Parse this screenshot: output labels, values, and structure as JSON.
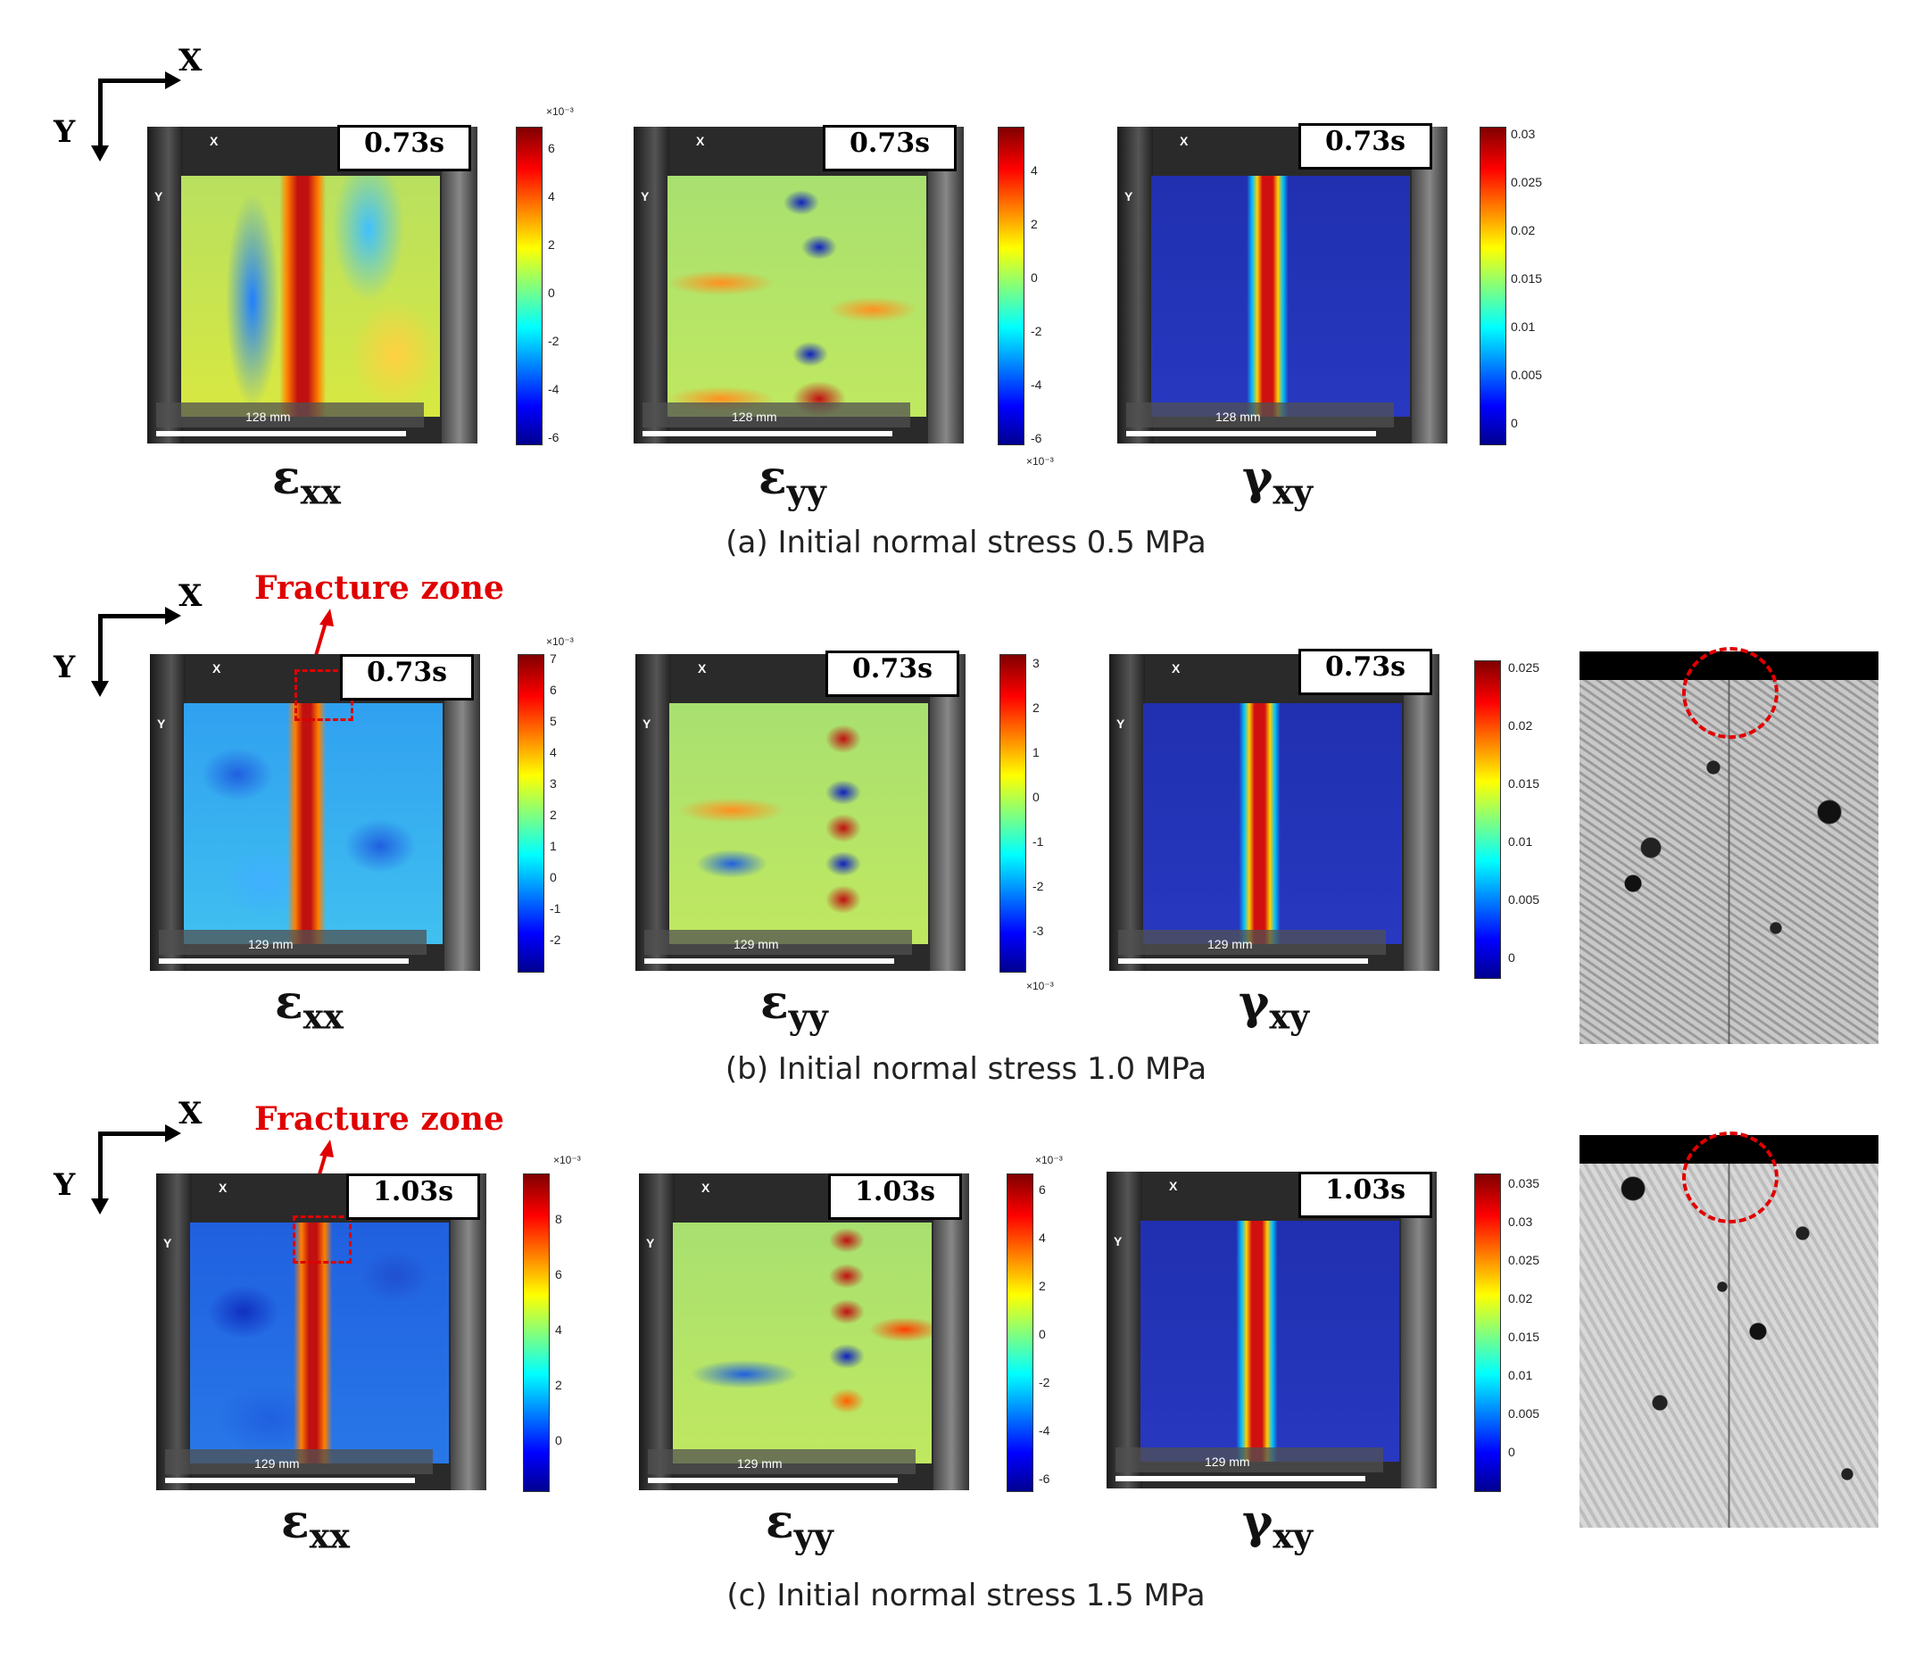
{
  "axes_labels": {
    "x": "X",
    "y": "Y"
  },
  "fracture_label": "Fracture zone",
  "panel_marks": {
    "x": "X",
    "y": "Y"
  },
  "strain_symbols": {
    "exx": {
      "base": "ε",
      "sub": "xx"
    },
    "eyy": {
      "base": "ε",
      "sub": "yy"
    },
    "gxy": {
      "base": "γ",
      "sub": "xy"
    }
  },
  "colorbar_exponent": "×10⁻³",
  "rows": [
    {
      "caption": "(a) Initial normal stress 0.5 MPa",
      "time": "0.73s",
      "scale": "128 mm",
      "exx_ticks": [
        "6",
        "4",
        "2",
        "0",
        "-2",
        "-4",
        "-6"
      ],
      "eyy_ticks": [
        "4",
        "2",
        "0",
        "-2",
        "-4",
        "-6"
      ],
      "gxy_ticks": [
        "0.03",
        "0.025",
        "0.02",
        "0.015",
        "0.01",
        "0.005",
        "0"
      ]
    },
    {
      "caption": "(b) Initial normal stress 1.0 MPa",
      "time": "0.73s",
      "scale": "129 mm",
      "exx_ticks": [
        "7",
        "6",
        "5",
        "4",
        "3",
        "2",
        "1",
        "0",
        "-1",
        "-2"
      ],
      "eyy_ticks": [
        "3",
        "2",
        "1",
        "0",
        "-1",
        "-2",
        "-3"
      ],
      "gxy_ticks": [
        "0.025",
        "0.02",
        "0.015",
        "0.01",
        "0.005",
        "0"
      ]
    },
    {
      "caption": "(c) Initial normal stress 1.5 MPa",
      "time": "1.03s",
      "scale": "129 mm",
      "exx_ticks": [
        "8",
        "6",
        "4",
        "2",
        "0"
      ],
      "eyy_ticks": [
        "6",
        "4",
        "2",
        "0",
        "-2",
        "-4",
        "-6"
      ],
      "gxy_ticks": [
        "0.035",
        "0.03",
        "0.025",
        "0.02",
        "0.015",
        "0.01",
        "0.005",
        "0"
      ]
    }
  ]
}
